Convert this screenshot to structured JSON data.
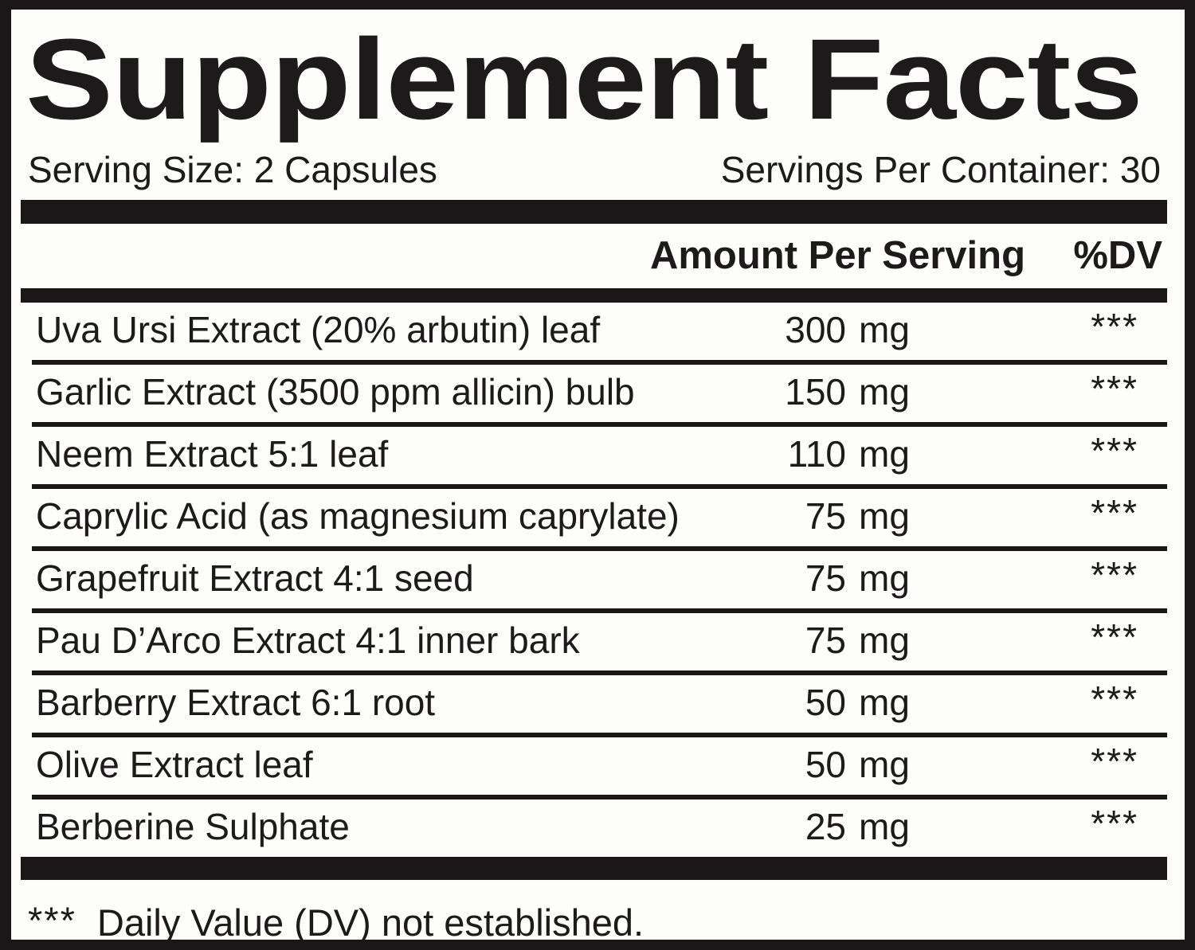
{
  "panel": {
    "title": "Supplement Facts",
    "serving_size": "Serving Size: 2 Capsules",
    "servings_per_container": "Servings Per Container: 30",
    "columns": {
      "amount_header": "Amount Per Serving",
      "dv_header": "%DV"
    },
    "rows": [
      {
        "name": "Uva Ursi Extract (20% arbutin) leaf",
        "amount": "300",
        "unit": "mg",
        "dv": "***"
      },
      {
        "name": "Garlic Extract (3500 ppm allicin) bulb",
        "amount": "150",
        "unit": "mg",
        "dv": "***"
      },
      {
        "name": "Neem Extract 5:1 leaf",
        "amount": "110",
        "unit": "mg",
        "dv": "***"
      },
      {
        "name": "Caprylic Acid (as magnesium caprylate)",
        "amount": "75",
        "unit": "mg",
        "dv": "***"
      },
      {
        "name": "Grapefruit Extract 4:1 seed",
        "amount": "75",
        "unit": "mg",
        "dv": "***"
      },
      {
        "name": "Pau D’Arco Extract 4:1 inner bark",
        "amount": "75",
        "unit": "mg",
        "dv": "***"
      },
      {
        "name": "Barberry Extract 6:1 root",
        "amount": "50",
        "unit": "mg",
        "dv": "***"
      },
      {
        "name": "Olive Extract leaf",
        "amount": "50",
        "unit": "mg",
        "dv": "***"
      },
      {
        "name": "Berberine Sulphate",
        "amount": "25",
        "unit": "mg",
        "dv": "***"
      }
    ],
    "footnote": {
      "marker": "***",
      "text": "Daily Value (DV) not established."
    },
    "colors": {
      "ink": "#1b1719",
      "background": "#fdfdfc"
    }
  }
}
